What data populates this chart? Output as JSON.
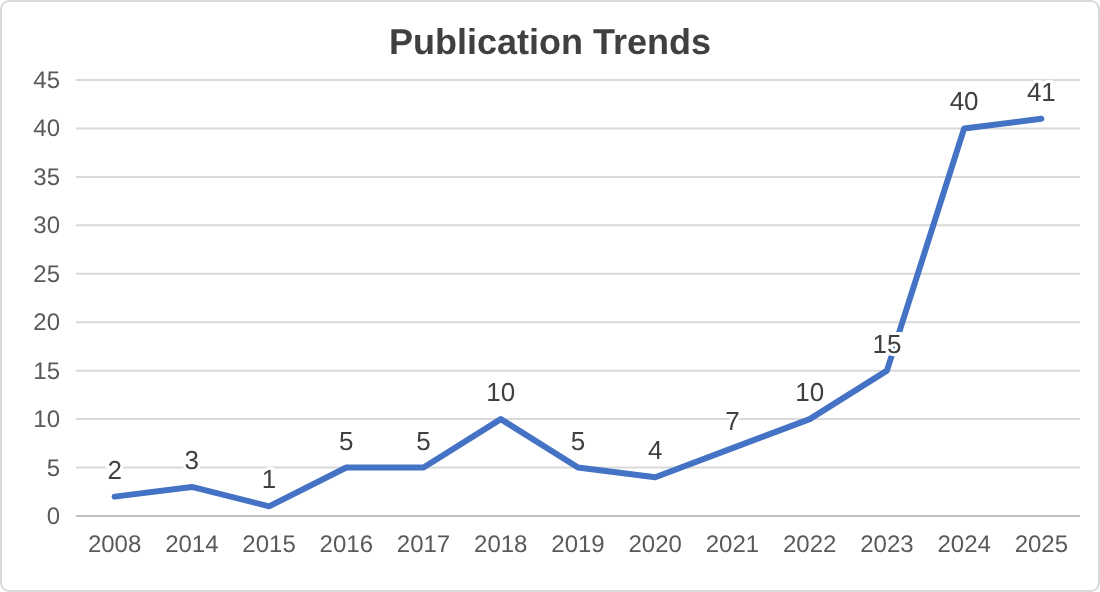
{
  "chart_data": {
    "type": "line",
    "title": "Publication Trends",
    "categories": [
      "2008",
      "2014",
      "2015",
      "2016",
      "2017",
      "2018",
      "2019",
      "2020",
      "2021",
      "2022",
      "2023",
      "2024",
      "2025"
    ],
    "series": [
      {
        "color": "#4472c4",
        "values": [
          2,
          3,
          1,
          5,
          5,
          10,
          5,
          4,
          7,
          10,
          15,
          40,
          41
        ]
      }
    ],
    "ylim": [
      0,
      45
    ],
    "yticks": [
      0,
      5,
      10,
      15,
      20,
      25,
      30,
      35,
      40,
      45
    ],
    "grid": "y",
    "data_labels": true,
    "marker": "none",
    "line_style": "solid"
  }
}
